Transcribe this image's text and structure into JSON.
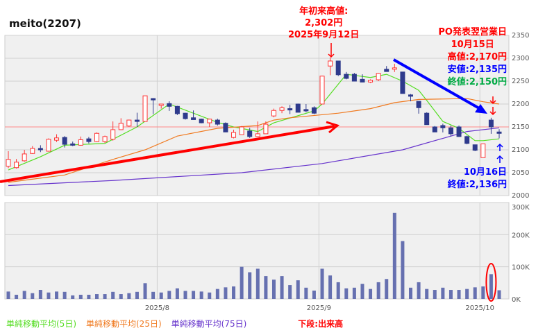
{
  "title": "meito(2207)",
  "colors": {
    "up": "#ff3333",
    "down": "#2e3a8c",
    "ma5": "#55dd22",
    "ma25": "#f07a20",
    "ma75": "#6633cc",
    "volume": "#6670b0",
    "annot_red": "#ff0000",
    "annot_blue": "#0000ff",
    "annot_green": "#00aa44"
  },
  "annotations": {
    "ytd_high": [
      "年初来高値:",
      "2,302円",
      "2025年9月12日"
    ],
    "po_title": [
      "PO発表翌営業日",
      "10月15日"
    ],
    "po_high": "高値:2,170円",
    "po_low": "安値:2,135円",
    "po_close": "終値:2,150円",
    "oct16": [
      "10月16日",
      "終値:2,136円"
    ],
    "lower_panel": "下段:出来高"
  },
  "legend": [
    "単純移動平均(5日)",
    "単純移動平均(25日)",
    "単純移動平均(75日)"
  ],
  "chart_data": {
    "type": "candlestick",
    "title": "meito(2207)",
    "price_axis": {
      "range": [
        2000,
        2350
      ],
      "ticks": [
        "2000",
        "2050",
        "2100",
        "2150",
        "2200",
        "2250",
        "2300",
        "2350"
      ]
    },
    "volume_axis": {
      "range": [
        0,
        300
      ],
      "ticks": [
        "0K",
        "100K",
        "200K",
        "300K"
      ]
    },
    "x_ticks": [
      "2025/8",
      "2025/9",
      "2025/10"
    ],
    "reference_line": 2150,
    "grid": true,
    "ohlc": [
      [
        2064,
        2097,
        2060,
        2079
      ],
      [
        2061,
        2080,
        2059,
        2073
      ],
      [
        2076,
        2100,
        2074,
        2091
      ],
      [
        2092,
        2108,
        2091,
        2103
      ],
      [
        2103,
        2110,
        2095,
        2101
      ],
      [
        2097,
        2125,
        2096,
        2123
      ],
      [
        2121,
        2134,
        2117,
        2126
      ],
      [
        2127,
        2130,
        2105,
        2112
      ],
      [
        2113,
        2118,
        2108,
        2110
      ],
      [
        2110,
        2129,
        2109,
        2122
      ],
      [
        2124,
        2128,
        2114,
        2118
      ],
      [
        2118,
        2138,
        2117,
        2136
      ],
      [
        2118,
        2131,
        2115,
        2129
      ],
      [
        2123,
        2162,
        2120,
        2144
      ],
      [
        2144,
        2169,
        2143,
        2158
      ],
      [
        2152,
        2166,
        2150,
        2165
      ],
      [
        2165,
        2181,
        2150,
        2162
      ],
      [
        2162,
        2218,
        2162,
        2218
      ],
      [
        2212,
        2213,
        2178,
        2209
      ],
      [
        2197,
        2200,
        2190,
        2200
      ],
      [
        2201,
        2206,
        2185,
        2195
      ],
      [
        2195,
        2196,
        2176,
        2179
      ],
      [
        2180,
        2181,
        2166,
        2168
      ],
      [
        2170,
        2186,
        2166,
        2166
      ],
      [
        2167,
        2168,
        2158,
        2159
      ],
      [
        2159,
        2168,
        2150,
        2167
      ],
      [
        2165,
        2168,
        2153,
        2156
      ],
      [
        2158,
        2160,
        2139,
        2139
      ],
      [
        2127,
        2144,
        2125,
        2138
      ],
      [
        2133,
        2152,
        2133,
        2150
      ],
      [
        2141,
        2148,
        2126,
        2129
      ],
      [
        2129,
        2162,
        2129,
        2135
      ],
      [
        2135,
        2162,
        2135,
        2156
      ],
      [
        2174,
        2190,
        2171,
        2186
      ],
      [
        2186,
        2195,
        2180,
        2192
      ],
      [
        2190,
        2198,
        2178,
        2188
      ],
      [
        2200,
        2201,
        2182,
        2182
      ],
      [
        2188,
        2200,
        2182,
        2185
      ],
      [
        2192,
        2195,
        2178,
        2180
      ],
      [
        2200,
        2262,
        2200,
        2261
      ],
      [
        2283,
        2302,
        2263,
        2294
      ],
      [
        2294,
        2294,
        2261,
        2264
      ],
      [
        2265,
        2270,
        2254,
        2256
      ],
      [
        2265,
        2268,
        2250,
        2250
      ],
      [
        2254,
        2265,
        2248,
        2248
      ],
      [
        2248,
        2254,
        2246,
        2252
      ],
      [
        2253,
        2268,
        2250,
        2267
      ],
      [
        2276,
        2283,
        2271,
        2271
      ],
      [
        2278,
        2288,
        2270,
        2279
      ],
      [
        2270,
        2270,
        2223,
        2223
      ],
      [
        2220,
        2222,
        2206,
        2217
      ],
      [
        2206,
        2206,
        2179,
        2192
      ],
      [
        2180,
        2182,
        2155,
        2155
      ],
      [
        2150,
        2152,
        2139,
        2139
      ],
      [
        2153,
        2157,
        2138,
        2148
      ],
      [
        2148,
        2153,
        2129,
        2135
      ],
      [
        2150,
        2153,
        2128,
        2129
      ],
      [
        2129,
        2131,
        2112,
        2114
      ],
      [
        2111,
        2111,
        2097,
        2099
      ],
      [
        2083,
        2113,
        2083,
        2113
      ],
      [
        2165,
        2170,
        2135,
        2150
      ],
      [
        2139,
        2145,
        2125,
        2136
      ]
    ],
    "volume_k": [
      23,
      13,
      25,
      18,
      28,
      20,
      23,
      22,
      11,
      13,
      13,
      15,
      15,
      22,
      15,
      18,
      22,
      49,
      22,
      20,
      25,
      33,
      25,
      25,
      23,
      20,
      31,
      36,
      39,
      100,
      83,
      94,
      71,
      60,
      71,
      43,
      58,
      35,
      26,
      94,
      73,
      52,
      33,
      35,
      47,
      31,
      52,
      62,
      268,
      180,
      35,
      52,
      31,
      28,
      35,
      28,
      28,
      31,
      36,
      39,
      77,
      27
    ],
    "series": [
      {
        "name": "単純移動平均(5日)",
        "points": [
          [
            0,
            2056
          ],
          [
            4,
            2085
          ],
          [
            7,
            2110
          ],
          [
            12,
            2114
          ],
          [
            16,
            2150
          ],
          [
            20,
            2200
          ],
          [
            26,
            2160
          ],
          [
            28,
            2150
          ],
          [
            31,
            2140
          ],
          [
            33,
            2159
          ],
          [
            38,
            2185
          ],
          [
            39,
            2200
          ],
          [
            42,
            2265
          ],
          [
            45,
            2258
          ],
          [
            47,
            2265
          ],
          [
            49,
            2250
          ],
          [
            51,
            2230
          ],
          [
            52,
            2208
          ],
          [
            54,
            2162
          ],
          [
            56,
            2147
          ],
          [
            58,
            2120
          ],
          [
            59,
            2120
          ],
          [
            61,
            2124
          ]
        ]
      },
      {
        "name": "単純移動平均(25日)",
        "points": [
          [
            0,
            2029
          ],
          [
            7,
            2045
          ],
          [
            13,
            2079
          ],
          [
            17,
            2100
          ],
          [
            21,
            2130
          ],
          [
            26,
            2147
          ],
          [
            31,
            2153
          ],
          [
            33,
            2165
          ],
          [
            35,
            2170
          ],
          [
            41,
            2180
          ],
          [
            45,
            2190
          ],
          [
            48,
            2203
          ],
          [
            51,
            2210
          ],
          [
            57,
            2212
          ],
          [
            59,
            2205
          ],
          [
            61,
            2200
          ]
        ]
      },
      {
        "name": "単純移動平均(75日)",
        "points": [
          [
            0,
            2022
          ],
          [
            13,
            2033
          ],
          [
            29,
            2050
          ],
          [
            39,
            2070
          ],
          [
            49,
            2100
          ],
          [
            55,
            2130
          ],
          [
            57,
            2140
          ],
          [
            61,
            2148
          ]
        ]
      }
    ]
  }
}
